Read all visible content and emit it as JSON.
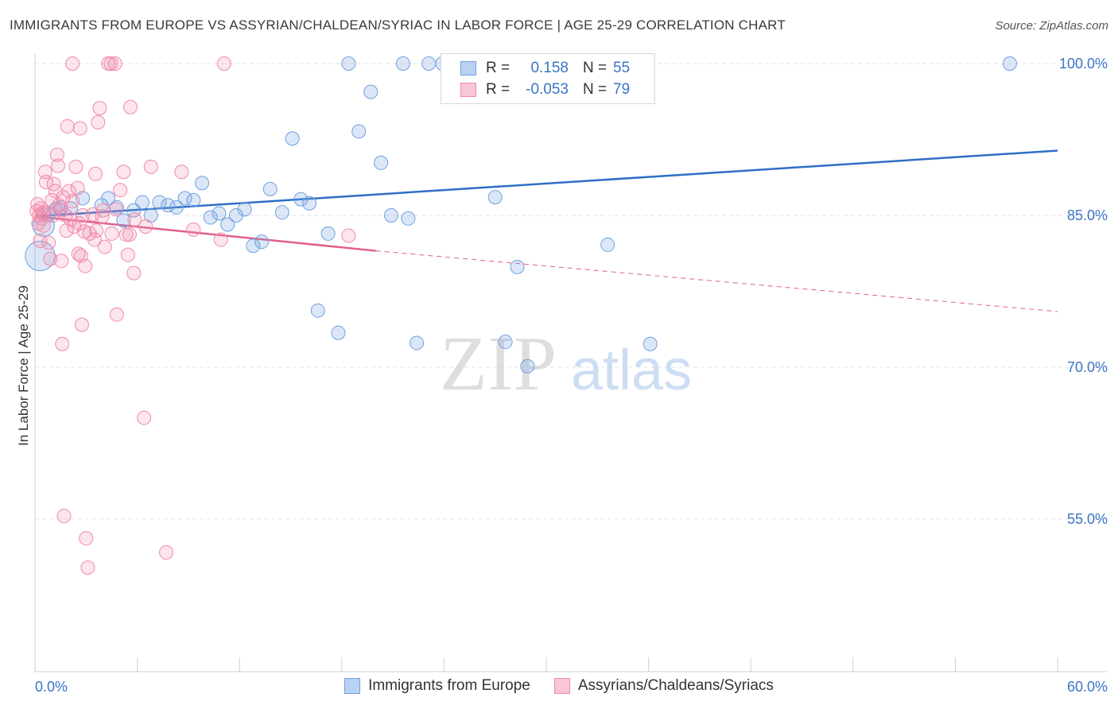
{
  "header": {
    "title": "IMMIGRANTS FROM EUROPE VS ASSYRIAN/CHALDEAN/SYRIAC IN LABOR FORCE | AGE 25-29 CORRELATION CHART",
    "source": "Source: ZipAtlas.com"
  },
  "legend_top": {
    "rows": [
      {
        "r_label": "R =",
        "r_value": "0.158",
        "n_label": "N =",
        "n_value": "55"
      },
      {
        "r_label": "R =",
        "r_value": "-0.053",
        "n_label": "N =",
        "n_value": "79"
      }
    ]
  },
  "legend_bottom": {
    "items": [
      {
        "label": "Immigrants from Europe"
      },
      {
        "label": "Assyrians/Chaldeans/Syriacs"
      }
    ]
  },
  "watermark": {
    "zip": "ZIP",
    "atlas": "atlas"
  },
  "chart_data": {
    "type": "scatter",
    "title": "IMMIGRANTS FROM EUROPE VS ASSYRIAN/CHALDEAN/SYRIAC IN LABOR FORCE | AGE 25-29 CORRELATION CHART",
    "xlabel": "",
    "ylabel": "In Labor Force | Age 25-29",
    "xlim": [
      0,
      60
    ],
    "ylim": [
      40,
      102
    ],
    "x_tick_labels": [
      "0.0%",
      "60.0%"
    ],
    "y_ticks": [
      55,
      70,
      85,
      100
    ],
    "y_tick_labels": [
      "55.0%",
      "70.0%",
      "85.0%",
      "100.0%"
    ],
    "grid": true,
    "colors": {
      "europe": "#6fa0e0",
      "europe_line": "#2f6fc7",
      "assyrian": "#f08aaa",
      "assyrian_line": "#e0608a",
      "tick_label": "#3a74c4"
    },
    "series": [
      {
        "name": "Immigrants from Europe",
        "color": "#6fa0e0",
        "points": [
          [
            0.3,
            81.0,
            2.2
          ],
          [
            0.5,
            84.0,
            1.6
          ],
          [
            0.8,
            85.1,
            1
          ],
          [
            1.2,
            85.6,
            1
          ],
          [
            1.5,
            85.8,
            1
          ],
          [
            2.1,
            85.7,
            1
          ],
          [
            2.8,
            86.7,
            1
          ],
          [
            3.9,
            86.0,
            1
          ],
          [
            4.3,
            86.7,
            1
          ],
          [
            4.8,
            85.8,
            1
          ],
          [
            5.2,
            84.5,
            1
          ],
          [
            5.8,
            85.5,
            1
          ],
          [
            6.3,
            86.3,
            1
          ],
          [
            6.8,
            85.0,
            1
          ],
          [
            7.3,
            86.3,
            1
          ],
          [
            7.8,
            86.0,
            1
          ],
          [
            8.3,
            85.8,
            1
          ],
          [
            8.8,
            86.7,
            1
          ],
          [
            9.3,
            86.5,
            1
          ],
          [
            9.8,
            88.2,
            1
          ],
          [
            10.3,
            84.8,
            1
          ],
          [
            10.8,
            85.2,
            1
          ],
          [
            11.3,
            84.1,
            1
          ],
          [
            11.8,
            85.0,
            1
          ],
          [
            12.3,
            85.6,
            1
          ],
          [
            12.8,
            82.0,
            1
          ],
          [
            13.3,
            82.4,
            1
          ],
          [
            13.8,
            87.6,
            1
          ],
          [
            14.5,
            85.3,
            1
          ],
          [
            15.1,
            92.6,
            1
          ],
          [
            15.6,
            86.6,
            1
          ],
          [
            16.1,
            86.2,
            1
          ],
          [
            16.6,
            75.6,
            1
          ],
          [
            17.2,
            83.2,
            1
          ],
          [
            17.8,
            73.4,
            1
          ],
          [
            18.4,
            100.0,
            1
          ],
          [
            19.0,
            93.3,
            1
          ],
          [
            19.7,
            97.2,
            1
          ],
          [
            20.3,
            90.2,
            1
          ],
          [
            20.9,
            85.0,
            1
          ],
          [
            21.6,
            100.0,
            1
          ],
          [
            21.9,
            84.7,
            1
          ],
          [
            22.4,
            72.4,
            1
          ],
          [
            23.1,
            100.0,
            1
          ],
          [
            23.9,
            100.0,
            1
          ],
          [
            25.7,
            97.5,
            1
          ],
          [
            26.3,
            100.0,
            1
          ],
          [
            27.0,
            86.8,
            1
          ],
          [
            27.6,
            72.5,
            1
          ],
          [
            28.3,
            79.9,
            1
          ],
          [
            28.9,
            70.1,
            1
          ],
          [
            30.7,
            100.0,
            1
          ],
          [
            33.6,
            82.1,
            1
          ],
          [
            36.1,
            72.3,
            1
          ],
          [
            57.2,
            100.0,
            1
          ]
        ]
      },
      {
        "name": "Assyrians/Chaldeans/Syriacs",
        "color": "#f08aaa",
        "points": [
          [
            0.1,
            85.4,
            1
          ],
          [
            0.15,
            86.1,
            1
          ],
          [
            0.2,
            84.2,
            1
          ],
          [
            0.25,
            85.0,
            1
          ],
          [
            0.3,
            82.5,
            1
          ],
          [
            0.35,
            85.7,
            1
          ],
          [
            0.4,
            84.7,
            1
          ],
          [
            0.45,
            85.2,
            1
          ],
          [
            0.5,
            84.0,
            1
          ],
          [
            0.55,
            85.3,
            1
          ],
          [
            0.6,
            89.3,
            1
          ],
          [
            0.65,
            88.3,
            1
          ],
          [
            0.8,
            82.3,
            1
          ],
          [
            0.9,
            80.7,
            1
          ],
          [
            1.0,
            86.5,
            1
          ],
          [
            1.05,
            85.0,
            1
          ],
          [
            1.1,
            88.1,
            1
          ],
          [
            1.2,
            87.4,
            1
          ],
          [
            1.3,
            91.0,
            1
          ],
          [
            1.35,
            89.9,
            1
          ],
          [
            1.4,
            86.0,
            1
          ],
          [
            1.5,
            85.5,
            1
          ],
          [
            1.55,
            80.5,
            1
          ],
          [
            1.6,
            72.3,
            1
          ],
          [
            1.65,
            86.8,
            1
          ],
          [
            1.7,
            55.3,
            1
          ],
          [
            1.8,
            85.0,
            1
          ],
          [
            1.85,
            83.5,
            1
          ],
          [
            1.9,
            93.8,
            1
          ],
          [
            2.0,
            87.4,
            1
          ],
          [
            2.1,
            84.6,
            1
          ],
          [
            2.2,
            86.4,
            1
          ],
          [
            2.2,
            100.0,
            1
          ],
          [
            2.3,
            83.9,
            1
          ],
          [
            2.4,
            89.8,
            1
          ],
          [
            2.5,
            87.7,
            1
          ],
          [
            2.55,
            81.2,
            1
          ],
          [
            2.6,
            84.2,
            1
          ],
          [
            2.65,
            93.6,
            1
          ],
          [
            2.7,
            81.0,
            1
          ],
          [
            2.75,
            74.2,
            1
          ],
          [
            2.8,
            85.0,
            1
          ],
          [
            2.9,
            83.4,
            1
          ],
          [
            2.95,
            80.0,
            1
          ],
          [
            3.0,
            53.1,
            1
          ],
          [
            3.1,
            50.2,
            1
          ],
          [
            3.2,
            83.2,
            1
          ],
          [
            3.4,
            85.1,
            1
          ],
          [
            3.5,
            82.6,
            1
          ],
          [
            3.55,
            89.1,
            1
          ],
          [
            3.6,
            83.5,
            1
          ],
          [
            3.7,
            94.2,
            1
          ],
          [
            3.8,
            95.6,
            1
          ],
          [
            3.95,
            84.9,
            1
          ],
          [
            4.0,
            85.5,
            1
          ],
          [
            4.1,
            81.9,
            1
          ],
          [
            4.3,
            100.0,
            1
          ],
          [
            4.45,
            100.0,
            1
          ],
          [
            4.5,
            83.2,
            1
          ],
          [
            4.7,
            100.0,
            1
          ],
          [
            4.75,
            85.6,
            1
          ],
          [
            4.8,
            75.2,
            1
          ],
          [
            5.0,
            87.5,
            1
          ],
          [
            5.2,
            89.3,
            1
          ],
          [
            5.35,
            83.1,
            1
          ],
          [
            5.45,
            81.1,
            1
          ],
          [
            5.55,
            83.1,
            1
          ],
          [
            5.6,
            95.7,
            1
          ],
          [
            5.8,
            79.3,
            1
          ],
          [
            5.85,
            84.6,
            1
          ],
          [
            6.4,
            65.0,
            1
          ],
          [
            6.5,
            83.9,
            1
          ],
          [
            6.8,
            89.8,
            1
          ],
          [
            7.7,
            51.7,
            1
          ],
          [
            8.6,
            89.3,
            1
          ],
          [
            9.3,
            83.6,
            1
          ],
          [
            10.9,
            82.6,
            1
          ],
          [
            11.1,
            100.0,
            1
          ],
          [
            18.4,
            83.0,
            1
          ]
        ]
      }
    ],
    "trendlines": [
      {
        "series": "Immigrants from Europe",
        "x0": 0,
        "y0": 84.9,
        "x1": 60,
        "y1": 91.4,
        "style": "solid"
      },
      {
        "series": "Assyrians/Chaldeans/Syriacs",
        "x0": 0,
        "y0": 84.9,
        "x1": 20,
        "y1": 81.5,
        "style": "solid"
      },
      {
        "series": "Assyrians/Chaldeans/Syriacs",
        "x0": 20,
        "y0": 81.5,
        "x1": 60,
        "y1": 75.5,
        "style": "dashed"
      }
    ]
  }
}
